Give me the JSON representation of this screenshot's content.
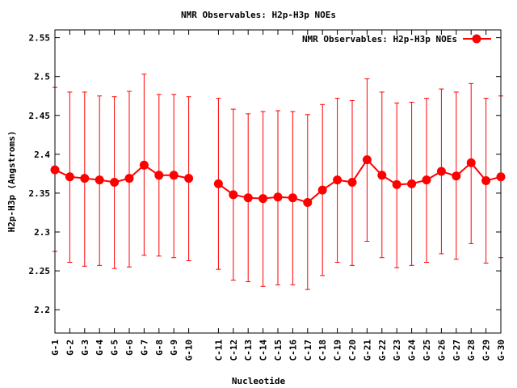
{
  "chart_data": {
    "type": "line",
    "title": "NMR Observables: H2p-H3p NOEs",
    "xlabel": "Nucleotide",
    "ylabel": "H2p-H3p (Angstroms)",
    "ylim": [
      2.17,
      2.56
    ],
    "yticks": [
      "2.2",
      "2.25",
      "2.3",
      "2.35",
      "2.4",
      "2.45",
      "2.5",
      "2.55"
    ],
    "grid": false,
    "legend_position": "top-right",
    "categories": [
      "G-1",
      "G-2",
      "G-3",
      "G-4",
      "G-5",
      "G-6",
      "G-7",
      "G-8",
      "G-9",
      "G-10",
      "C-11",
      "C-12",
      "C-13",
      "C-14",
      "C-15",
      "C-16",
      "C-17",
      "C-18",
      "C-19",
      "C-20",
      "G-21",
      "G-22",
      "G-23",
      "G-24",
      "G-25",
      "G-26",
      "G-27",
      "G-28",
      "G-29",
      "G-30"
    ],
    "x": [
      1,
      2,
      3,
      4,
      5,
      6,
      7,
      8,
      9,
      10,
      12,
      13,
      14,
      15,
      16,
      17,
      18,
      19,
      20,
      21,
      22,
      23,
      24,
      25,
      26,
      27,
      28,
      29,
      30,
      31
    ],
    "xlim": [
      1,
      31
    ],
    "series": [
      {
        "name": "NMR Observables: H2p-H3p NOEs",
        "color": "#ff0000",
        "values": [
          2.38,
          2.371,
          2.369,
          2.367,
          2.364,
          2.369,
          2.386,
          2.373,
          2.373,
          2.369,
          2.362,
          2.348,
          2.344,
          2.343,
          2.345,
          2.344,
          2.338,
          2.354,
          2.367,
          2.364,
          2.393,
          2.373,
          2.361,
          2.362,
          2.367,
          2.378,
          2.372,
          2.389,
          2.366,
          2.371
        ],
        "error_low": [
          2.275,
          2.261,
          2.256,
          2.257,
          2.253,
          2.255,
          2.27,
          2.269,
          2.267,
          2.263,
          2.252,
          2.238,
          2.236,
          2.23,
          2.232,
          2.232,
          2.226,
          2.244,
          2.261,
          2.257,
          2.288,
          2.267,
          2.254,
          2.257,
          2.261,
          2.272,
          2.265,
          2.285,
          2.26,
          2.267
        ],
        "error_high": [
          2.486,
          2.48,
          2.48,
          2.475,
          2.474,
          2.481,
          2.503,
          2.477,
          2.477,
          2.474,
          2.472,
          2.458,
          2.452,
          2.455,
          2.456,
          2.455,
          2.451,
          2.464,
          2.472,
          2.469,
          2.497,
          2.48,
          2.466,
          2.467,
          2.472,
          2.484,
          2.48,
          2.491,
          2.472,
          2.475
        ]
      }
    ]
  }
}
